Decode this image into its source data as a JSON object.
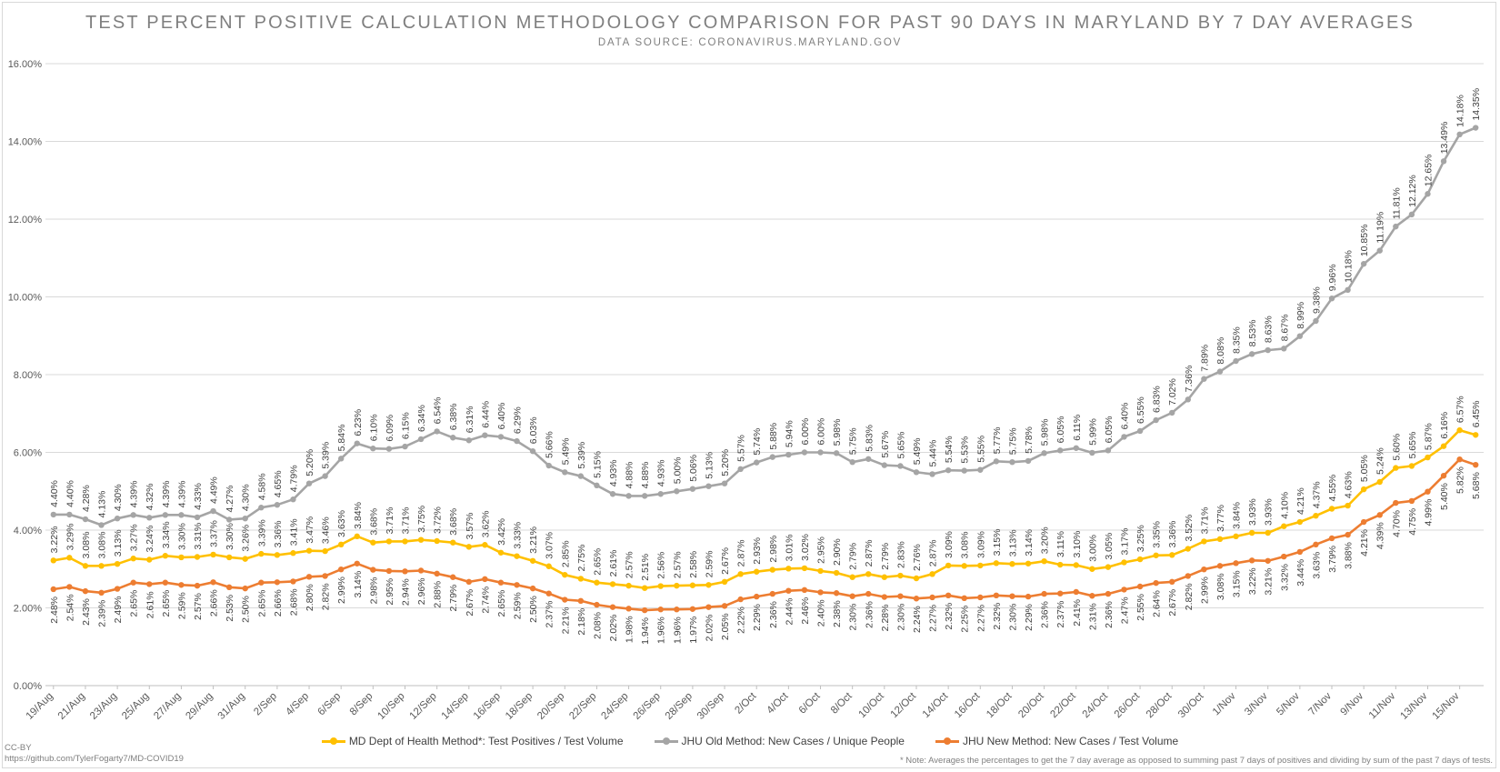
{
  "header": {
    "title": "TEST PERCENT POSITIVE CALCULATION METHODOLOGY COMPARISON FOR PAST 90 DAYS IN MARYLAND BY 7 DAY AVERAGES",
    "subtitle": "DATA SOURCE: CORONAVIRUS.MARYLAND.GOV"
  },
  "footer": {
    "license": "CC-BY",
    "url": "https://github.com/TylerFogarty7/MD-COVID19",
    "note": "* Note: Averages the percentages to get the 7 day average as opposed to summing past 7 days of positives and dividing by sum of the past 7 days of tests."
  },
  "chart_data": {
    "type": "line",
    "title": "TEST PERCENT POSITIVE CALCULATION METHODOLOGY COMPARISON FOR PAST 90 DAYS IN MARYLAND BY 7 DAY AVERAGES",
    "xlabel": "",
    "ylabel": "",
    "ylim": [
      0,
      16
    ],
    "y_ticks": [
      "0.00%",
      "2.00%",
      "4.00%",
      "6.00%",
      "8.00%",
      "10.00%",
      "12.00%",
      "14.00%",
      "16.00%"
    ],
    "grid": true,
    "legend_position": "bottom",
    "x_tick_labels": [
      "19/Aug",
      "21/Aug",
      "23/Aug",
      "25/Aug",
      "27/Aug",
      "29/Aug",
      "31/Aug",
      "2/Sep",
      "4/Sep",
      "6/Sep",
      "8/Sep",
      "10/Sep",
      "12/Sep",
      "14/Sep",
      "16/Sep",
      "18/Sep",
      "20/Sep",
      "22/Sep",
      "24/Sep",
      "26/Sep",
      "28/Sep",
      "30/Sep",
      "2/Oct",
      "4/Oct",
      "6/Oct",
      "8/Oct",
      "10/Oct",
      "12/Oct",
      "14/Oct",
      "16/Oct",
      "18/Oct",
      "20/Oct",
      "22/Oct",
      "24/Oct",
      "26/Oct",
      "28/Oct",
      "30/Oct",
      "1/Nov",
      "3/Nov",
      "5/Nov",
      "7/Nov",
      "9/Nov",
      "11/Nov",
      "13/Nov",
      "15/Nov"
    ],
    "series": [
      {
        "name": "MD Dept of Health Method*: Test Positives / Test Volume",
        "color": "#FFC000",
        "label_position": "above",
        "values": [
          3.22,
          3.29,
          3.08,
          3.08,
          3.13,
          3.27,
          3.24,
          3.34,
          3.3,
          3.31,
          3.37,
          3.3,
          3.26,
          3.39,
          3.36,
          3.41,
          3.47,
          3.46,
          3.63,
          3.84,
          3.68,
          3.71,
          3.71,
          3.75,
          3.72,
          3.68,
          3.57,
          3.62,
          3.42,
          3.33,
          3.21,
          3.07,
          2.85,
          2.75,
          2.65,
          2.61,
          2.57,
          2.51,
          2.56,
          2.57,
          2.58,
          2.59,
          2.67,
          2.87,
          2.93,
          2.98,
          3.01,
          3.02,
          2.95,
          2.9,
          2.79,
          2.87,
          2.79,
          2.83,
          2.76,
          2.87,
          3.09,
          3.08,
          3.09,
          3.15,
          3.13,
          3.14,
          3.2,
          3.11,
          3.1,
          3.0,
          3.05,
          3.17,
          3.25,
          3.35,
          3.36,
          3.52,
          3.71,
          3.77,
          3.84,
          3.93,
          3.93,
          4.1,
          4.21,
          4.37,
          4.55,
          4.63,
          5.05,
          5.24,
          5.6,
          5.65,
          5.87,
          6.16,
          6.57,
          6.45
        ]
      },
      {
        "name": "JHU Old Method: New Cases / Unique People",
        "color": "#A5A5A5",
        "label_position": "above",
        "values": [
          4.4,
          4.4,
          4.28,
          4.13,
          4.3,
          4.39,
          4.32,
          4.39,
          4.39,
          4.33,
          4.49,
          4.27,
          4.3,
          4.58,
          4.65,
          4.79,
          5.2,
          5.39,
          5.84,
          6.23,
          6.1,
          6.09,
          6.15,
          6.34,
          6.54,
          6.38,
          6.31,
          6.44,
          6.4,
          6.29,
          6.03,
          5.66,
          5.49,
          5.39,
          5.15,
          4.93,
          4.88,
          4.88,
          4.93,
          5.0,
          5.06,
          5.13,
          5.2,
          5.57,
          5.74,
          5.88,
          5.94,
          6.0,
          6.0,
          5.98,
          5.75,
          5.83,
          5.67,
          5.65,
          5.49,
          5.44,
          5.54,
          5.53,
          5.55,
          5.77,
          5.75,
          5.78,
          5.98,
          6.05,
          6.11,
          5.99,
          6.05,
          6.4,
          6.55,
          6.83,
          7.02,
          7.36,
          7.89,
          8.08,
          8.35,
          8.53,
          8.63,
          8.67,
          8.99,
          9.38,
          9.96,
          10.18,
          10.85,
          11.19,
          11.81,
          12.12,
          12.65,
          13.49,
          14.18,
          14.35
        ]
      },
      {
        "name": "JHU New Method: New Cases / Test Volume",
        "color": "#ED7D31",
        "label_position": "below",
        "values": [
          2.48,
          2.54,
          2.43,
          2.39,
          2.49,
          2.65,
          2.61,
          2.65,
          2.59,
          2.57,
          2.66,
          2.53,
          2.5,
          2.65,
          2.66,
          2.68,
          2.8,
          2.82,
          2.99,
          3.14,
          2.98,
          2.95,
          2.94,
          2.96,
          2.88,
          2.79,
          2.67,
          2.74,
          2.65,
          2.59,
          2.5,
          2.37,
          2.21,
          2.18,
          2.08,
          2.02,
          1.98,
          1.94,
          1.96,
          1.96,
          1.97,
          2.02,
          2.05,
          2.22,
          2.29,
          2.36,
          2.44,
          2.46,
          2.4,
          2.38,
          2.3,
          2.36,
          2.28,
          2.3,
          2.24,
          2.27,
          2.32,
          2.25,
          2.27,
          2.32,
          2.3,
          2.29,
          2.36,
          2.37,
          2.41,
          2.31,
          2.36,
          2.47,
          2.55,
          2.64,
          2.67,
          2.82,
          2.99,
          3.08,
          3.15,
          3.22,
          3.21,
          3.32,
          3.44,
          3.63,
          3.79,
          3.88,
          4.21,
          4.39,
          4.7,
          4.75,
          4.99,
          5.4,
          5.82,
          5.68
        ]
      }
    ]
  }
}
